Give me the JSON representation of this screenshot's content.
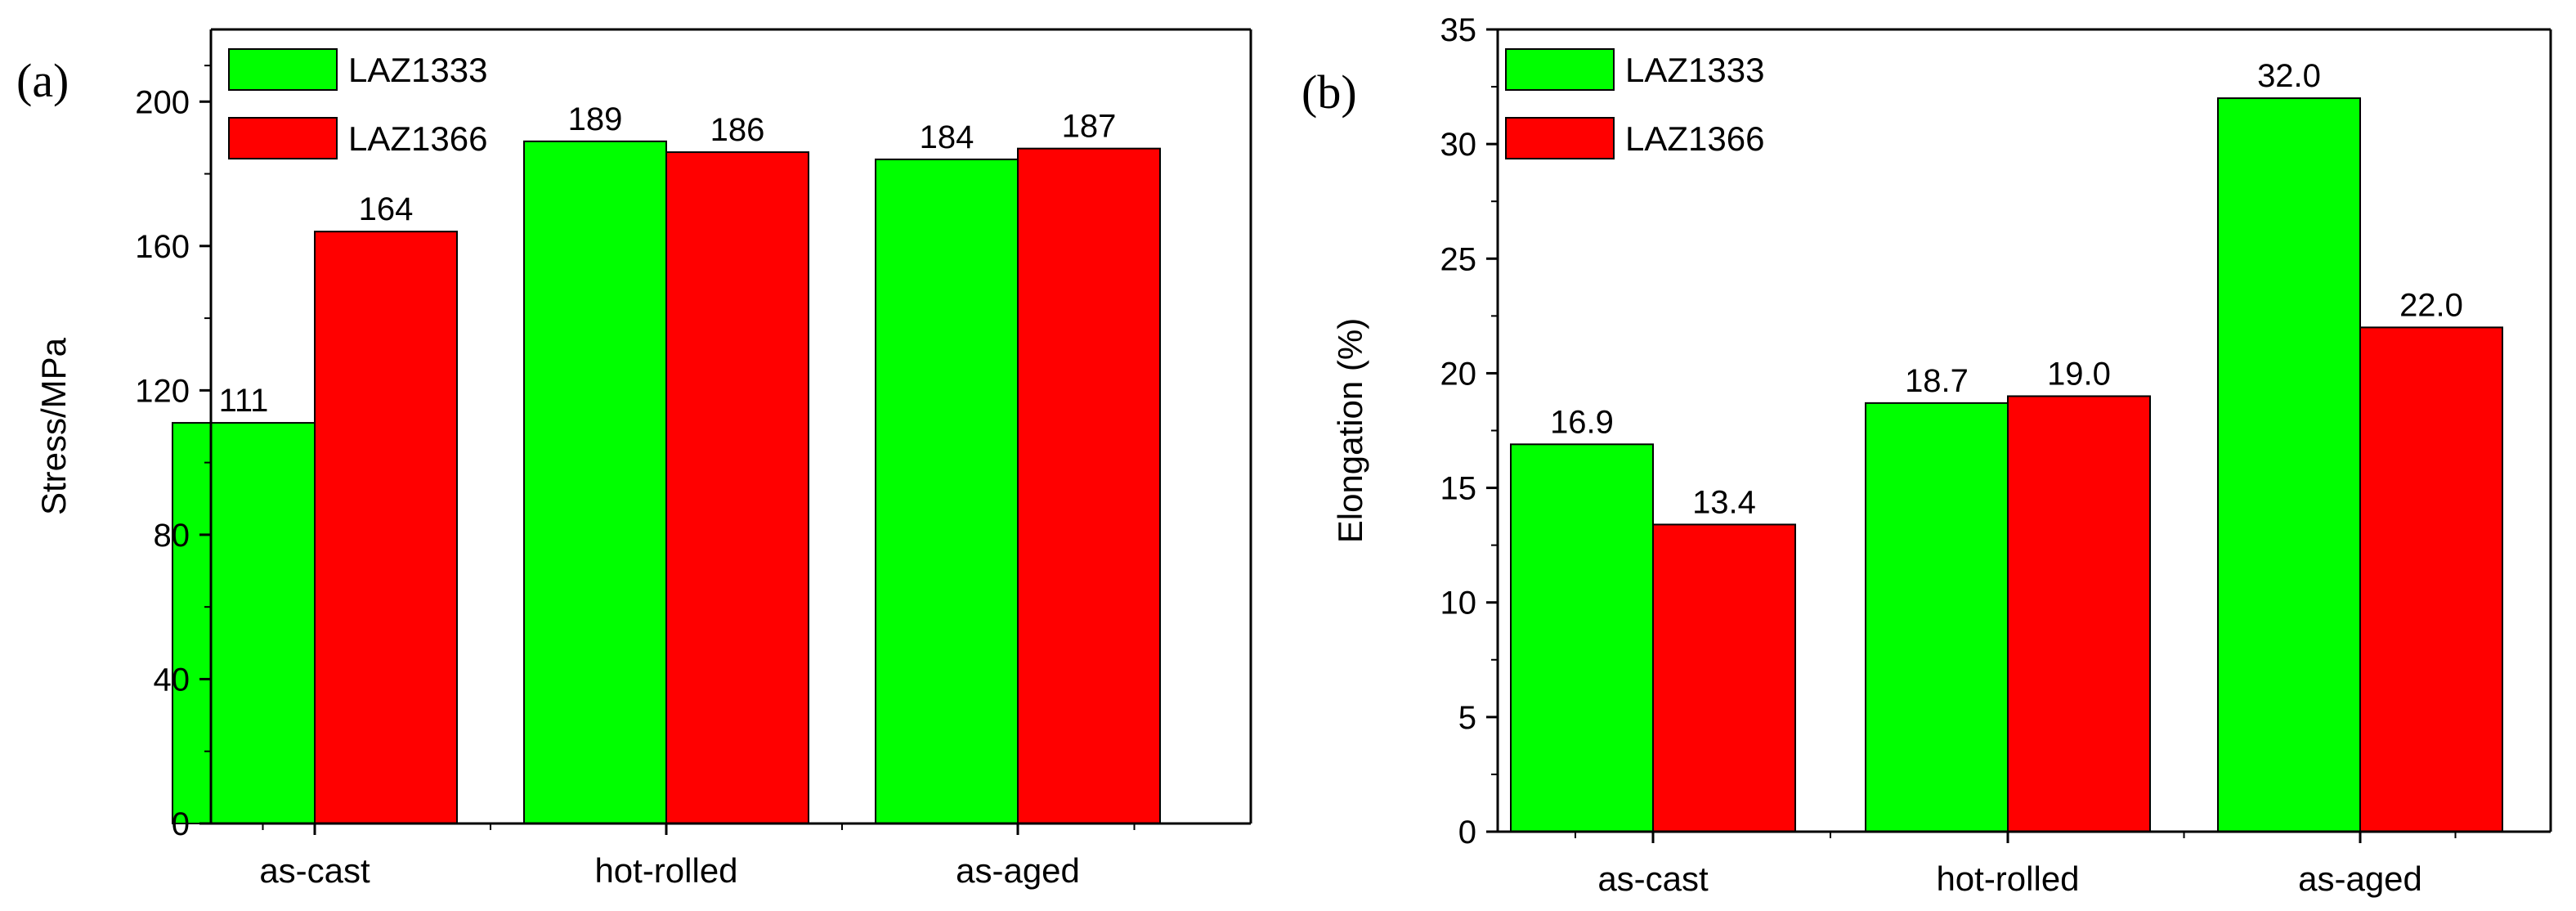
{
  "chart_data": [
    {
      "type": "bar",
      "panel_label": "(a)",
      "categories": [
        "as-cast",
        "hot-rolled",
        "as-aged"
      ],
      "series": [
        {
          "name": "LAZ1333",
          "color": "#00ff00",
          "values": [
            111,
            189,
            184
          ],
          "labels": [
            "111",
            "189",
            "184"
          ]
        },
        {
          "name": "LAZ1366",
          "color": "#ff0000",
          "values": [
            164,
            186,
            187
          ],
          "labels": [
            "164",
            "186",
            "187"
          ]
        }
      ],
      "title": "",
      "xlabel": "",
      "ylabel": "Stress/MPa",
      "ylim": [
        0,
        220
      ],
      "yticks": [
        0,
        40,
        80,
        120,
        160,
        200
      ],
      "ytick_labels": [
        "0",
        "40",
        "80",
        "120",
        "160",
        "200"
      ],
      "legend": "top-left"
    },
    {
      "type": "bar",
      "panel_label": "(b)",
      "categories": [
        "as-cast",
        "hot-rolled",
        "as-aged"
      ],
      "series": [
        {
          "name": "LAZ1333",
          "color": "#00ff00",
          "values": [
            16.9,
            18.7,
            32.0
          ],
          "labels": [
            "16.9",
            "18.7",
            "32.0"
          ]
        },
        {
          "name": "LAZ1366",
          "color": "#ff0000",
          "values": [
            13.4,
            19.0,
            22.0
          ],
          "labels": [
            "13.4",
            "19.0",
            "22.0"
          ]
        }
      ],
      "title": "",
      "xlabel": "",
      "ylabel": "Elongation (%)",
      "ylim": [
        0,
        35
      ],
      "yticks": [
        0,
        5,
        10,
        15,
        20,
        25,
        30,
        35
      ],
      "ytick_labels": [
        "0",
        "5",
        "10",
        "15",
        "20",
        "25",
        "30",
        "35"
      ],
      "legend": "top-left"
    }
  ]
}
